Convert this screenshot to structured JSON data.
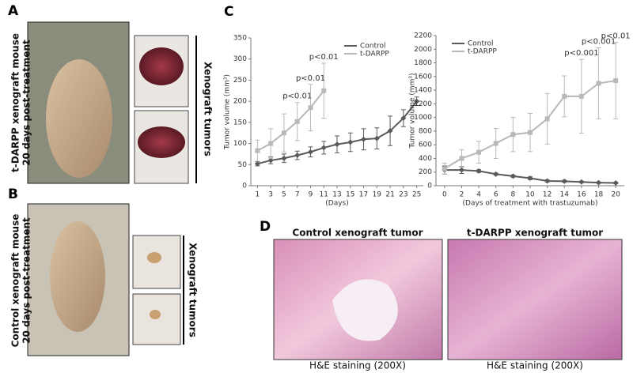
{
  "panels": {
    "A": "A",
    "B": "B",
    "C": "C",
    "D": "D"
  },
  "panel_a": {
    "caption_lines": [
      "t-DARPP xenograft mouse",
      "20 days post-treatment"
    ],
    "tumors_label": "Xenograft tumors"
  },
  "panel_b": {
    "caption_lines": [
      "Control xenograft mouse",
      "20 days post-treatment"
    ],
    "tumors_label": "Xenograft tumors"
  },
  "panel_d": {
    "left_title": "Control xenograft tumor",
    "right_title": "t-DARPP xenograft tumor",
    "left_caption": "H&E staining (200X)",
    "right_caption": "H&E staining (200X)"
  },
  "chart_data": [
    {
      "type": "line",
      "y_label": "Tumor volume (mm³)",
      "x_label": "(Days)",
      "x": [
        1,
        3,
        5,
        7,
        9,
        11,
        13,
        15,
        17,
        19,
        21,
        23,
        25
      ],
      "xlim": [
        0,
        26
      ],
      "xticks": [
        1,
        3,
        5,
        7,
        9,
        11,
        13,
        15,
        17,
        19,
        21,
        23,
        25
      ],
      "ylim": [
        0,
        350
      ],
      "yticks": [
        0,
        50,
        100,
        150,
        200,
        250,
        300,
        350
      ],
      "legend": "top-right",
      "series": [
        {
          "name": "Control",
          "color": "#5a5a5a",
          "marker": "diamond",
          "values": [
            52,
            60,
            65,
            72,
            80,
            90,
            98,
            103,
            110,
            112,
            130,
            160,
            200
          ],
          "errors": [
            5,
            8,
            10,
            10,
            12,
            15,
            20,
            22,
            25,
            25,
            35,
            20,
            10
          ]
        },
        {
          "name": "t-DARPP",
          "color": "#b8b8b8",
          "marker": "square",
          "values": [
            83,
            100,
            125,
            152,
            185,
            225,
            null,
            null,
            null,
            null,
            null,
            null,
            null
          ],
          "errors": [
            25,
            35,
            45,
            45,
            55,
            65,
            null,
            null,
            null,
            null,
            null,
            null,
            null
          ]
        }
      ],
      "annotations": [
        {
          "text": "p<0.01",
          "x": 7
        },
        {
          "text": "p<0.01",
          "x": 9
        },
        {
          "text": "p<0.01",
          "x": 11
        }
      ]
    },
    {
      "type": "line",
      "y_label": "Tumor volume (mm³)",
      "x_label": "(Days of treatment with trastuzumab)",
      "x": [
        0,
        2,
        4,
        6,
        8,
        10,
        12,
        14,
        16,
        18,
        20
      ],
      "xlim": [
        -1,
        21
      ],
      "xticks": [
        0,
        2,
        4,
        6,
        8,
        10,
        12,
        14,
        16,
        18,
        20
      ],
      "ylim": [
        0,
        2200
      ],
      "yticks": [
        0,
        200,
        400,
        600,
        800,
        1000,
        1200,
        1400,
        1600,
        1800,
        2000,
        2200
      ],
      "legend": "top-left",
      "series": [
        {
          "name": "Control",
          "color": "#5a5a5a",
          "marker": "diamond",
          "values": [
            230,
            230,
            215,
            170,
            140,
            110,
            70,
            65,
            55,
            45,
            40
          ],
          "errors": [
            60,
            50,
            20,
            15,
            15,
            20,
            15,
            15,
            10,
            10,
            10
          ]
        },
        {
          "name": "t-DARPP",
          "color": "#b8b8b8",
          "marker": "square",
          "values": [
            250,
            400,
            490,
            620,
            750,
            780,
            980,
            1310,
            1310,
            1500,
            1540
          ],
          "errors": [
            80,
            130,
            160,
            220,
            250,
            280,
            370,
            300,
            540,
            520,
            560
          ]
        }
      ],
      "annotations": [
        {
          "text": "p<0.001",
          "x": 16
        },
        {
          "text": "p<0.001",
          "x": 18
        },
        {
          "text": "p<0.01",
          "x": 20
        }
      ]
    }
  ]
}
